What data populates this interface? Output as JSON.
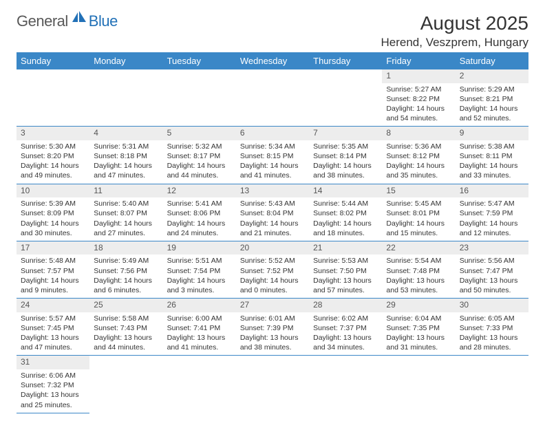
{
  "logo": {
    "general": "General",
    "blue": "Blue"
  },
  "title": "August 2025",
  "location": "Herend, Veszprem, Hungary",
  "colors": {
    "header_bg": "#3a87c7",
    "header_text": "#ffffff",
    "border": "#3a87c7",
    "daynum_bg": "#ededed",
    "logo_blue": "#2271b7"
  },
  "dayHeaders": [
    "Sunday",
    "Monday",
    "Tuesday",
    "Wednesday",
    "Thursday",
    "Friday",
    "Saturday"
  ],
  "weeks": [
    [
      null,
      null,
      null,
      null,
      null,
      {
        "n": "1",
        "sr": "5:27 AM",
        "ss": "8:22 PM",
        "dl": "14 hours and 54 minutes."
      },
      {
        "n": "2",
        "sr": "5:29 AM",
        "ss": "8:21 PM",
        "dl": "14 hours and 52 minutes."
      }
    ],
    [
      {
        "n": "3",
        "sr": "5:30 AM",
        "ss": "8:20 PM",
        "dl": "14 hours and 49 minutes."
      },
      {
        "n": "4",
        "sr": "5:31 AM",
        "ss": "8:18 PM",
        "dl": "14 hours and 47 minutes."
      },
      {
        "n": "5",
        "sr": "5:32 AM",
        "ss": "8:17 PM",
        "dl": "14 hours and 44 minutes."
      },
      {
        "n": "6",
        "sr": "5:34 AM",
        "ss": "8:15 PM",
        "dl": "14 hours and 41 minutes."
      },
      {
        "n": "7",
        "sr": "5:35 AM",
        "ss": "8:14 PM",
        "dl": "14 hours and 38 minutes."
      },
      {
        "n": "8",
        "sr": "5:36 AM",
        "ss": "8:12 PM",
        "dl": "14 hours and 35 minutes."
      },
      {
        "n": "9",
        "sr": "5:38 AM",
        "ss": "8:11 PM",
        "dl": "14 hours and 33 minutes."
      }
    ],
    [
      {
        "n": "10",
        "sr": "5:39 AM",
        "ss": "8:09 PM",
        "dl": "14 hours and 30 minutes."
      },
      {
        "n": "11",
        "sr": "5:40 AM",
        "ss": "8:07 PM",
        "dl": "14 hours and 27 minutes."
      },
      {
        "n": "12",
        "sr": "5:41 AM",
        "ss": "8:06 PM",
        "dl": "14 hours and 24 minutes."
      },
      {
        "n": "13",
        "sr": "5:43 AM",
        "ss": "8:04 PM",
        "dl": "14 hours and 21 minutes."
      },
      {
        "n": "14",
        "sr": "5:44 AM",
        "ss": "8:02 PM",
        "dl": "14 hours and 18 minutes."
      },
      {
        "n": "15",
        "sr": "5:45 AM",
        "ss": "8:01 PM",
        "dl": "14 hours and 15 minutes."
      },
      {
        "n": "16",
        "sr": "5:47 AM",
        "ss": "7:59 PM",
        "dl": "14 hours and 12 minutes."
      }
    ],
    [
      {
        "n": "17",
        "sr": "5:48 AM",
        "ss": "7:57 PM",
        "dl": "14 hours and 9 minutes."
      },
      {
        "n": "18",
        "sr": "5:49 AM",
        "ss": "7:56 PM",
        "dl": "14 hours and 6 minutes."
      },
      {
        "n": "19",
        "sr": "5:51 AM",
        "ss": "7:54 PM",
        "dl": "14 hours and 3 minutes."
      },
      {
        "n": "20",
        "sr": "5:52 AM",
        "ss": "7:52 PM",
        "dl": "14 hours and 0 minutes."
      },
      {
        "n": "21",
        "sr": "5:53 AM",
        "ss": "7:50 PM",
        "dl": "13 hours and 57 minutes."
      },
      {
        "n": "22",
        "sr": "5:54 AM",
        "ss": "7:48 PM",
        "dl": "13 hours and 53 minutes."
      },
      {
        "n": "23",
        "sr": "5:56 AM",
        "ss": "7:47 PM",
        "dl": "13 hours and 50 minutes."
      }
    ],
    [
      {
        "n": "24",
        "sr": "5:57 AM",
        "ss": "7:45 PM",
        "dl": "13 hours and 47 minutes."
      },
      {
        "n": "25",
        "sr": "5:58 AM",
        "ss": "7:43 PM",
        "dl": "13 hours and 44 minutes."
      },
      {
        "n": "26",
        "sr": "6:00 AM",
        "ss": "7:41 PM",
        "dl": "13 hours and 41 minutes."
      },
      {
        "n": "27",
        "sr": "6:01 AM",
        "ss": "7:39 PM",
        "dl": "13 hours and 38 minutes."
      },
      {
        "n": "28",
        "sr": "6:02 AM",
        "ss": "7:37 PM",
        "dl": "13 hours and 34 minutes."
      },
      {
        "n": "29",
        "sr": "6:04 AM",
        "ss": "7:35 PM",
        "dl": "13 hours and 31 minutes."
      },
      {
        "n": "30",
        "sr": "6:05 AM",
        "ss": "7:33 PM",
        "dl": "13 hours and 28 minutes."
      }
    ],
    [
      {
        "n": "31",
        "sr": "6:06 AM",
        "ss": "7:32 PM",
        "dl": "13 hours and 25 minutes."
      },
      null,
      null,
      null,
      null,
      null,
      null
    ]
  ],
  "labels": {
    "sunrise": "Sunrise:",
    "sunset": "Sunset:",
    "daylight": "Daylight:"
  }
}
